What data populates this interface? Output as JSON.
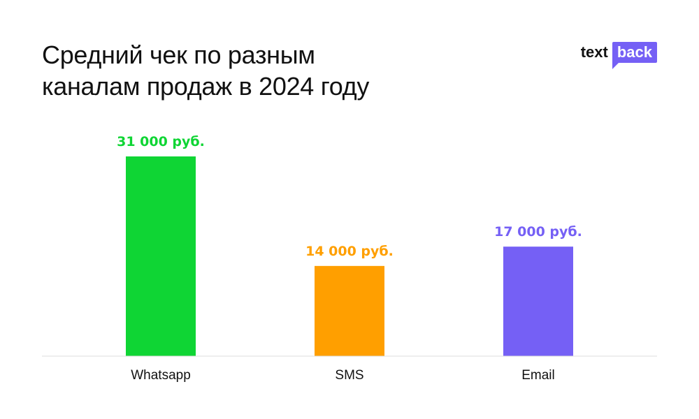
{
  "title_lines": [
    "Средний чек по разным",
    "каналам продаж в 2024 году"
  ],
  "logo": {
    "text": "text",
    "bubble": "back"
  },
  "colors": {
    "whatsapp": "#0fd534",
    "sms": "#ff9f00",
    "email": "#7560f5",
    "axis": "#dddddd",
    "logo_accent": "#7560f5"
  },
  "chart_data": {
    "type": "bar",
    "title": "Средний чек по разным каналам продаж в 2024 году",
    "categories": [
      "Whatsapp",
      "SMS",
      "Email"
    ],
    "values": [
      31000,
      14000,
      17000
    ],
    "data_labels": [
      "31 000 руб.",
      "14 000 руб.",
      "17 000 руб."
    ],
    "bar_colors": [
      "#0fd534",
      "#ff9f00",
      "#7560f5"
    ],
    "ylim": [
      0,
      31000
    ],
    "grid": false
  }
}
